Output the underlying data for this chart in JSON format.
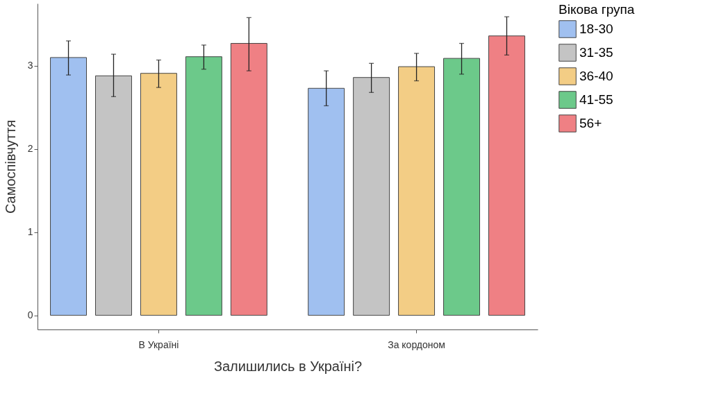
{
  "chart_data": {
    "type": "bar",
    "xlabel": "Залишились в Україні?",
    "ylabel": "Самоспівчуття",
    "legend_title": "Вікова група",
    "categories": [
      "В Україні",
      "За кордоном"
    ],
    "series": [
      {
        "name": "18-30",
        "color": "#a0c0f0",
        "values": [
          3.1,
          2.73
        ],
        "errors": [
          [
            2.89,
            3.3
          ],
          [
            2.52,
            2.94
          ]
        ]
      },
      {
        "name": "31-35",
        "color": "#c4c4c4",
        "values": [
          2.88,
          2.86
        ],
        "errors": [
          [
            2.63,
            3.14
          ],
          [
            2.68,
            3.03
          ]
        ]
      },
      {
        "name": "36-40",
        "color": "#f3cd85",
        "values": [
          2.91,
          2.99
        ],
        "errors": [
          [
            2.74,
            3.07
          ],
          [
            2.82,
            3.15
          ]
        ]
      },
      {
        "name": "41-55",
        "color": "#6cc98a",
        "values": [
          3.11,
          3.09
        ],
        "errors": [
          [
            2.96,
            3.25
          ],
          [
            2.9,
            3.27
          ]
        ]
      },
      {
        "name": "56+",
        "color": "#ef8084",
        "values": [
          3.27,
          3.36
        ],
        "errors": [
          [
            2.94,
            3.58
          ],
          [
            3.13,
            3.59
          ]
        ]
      }
    ],
    "ylim": [
      -0.17,
      3.75
    ],
    "yticks": [
      0,
      1,
      2,
      3
    ],
    "grid": false,
    "legend": "right"
  }
}
